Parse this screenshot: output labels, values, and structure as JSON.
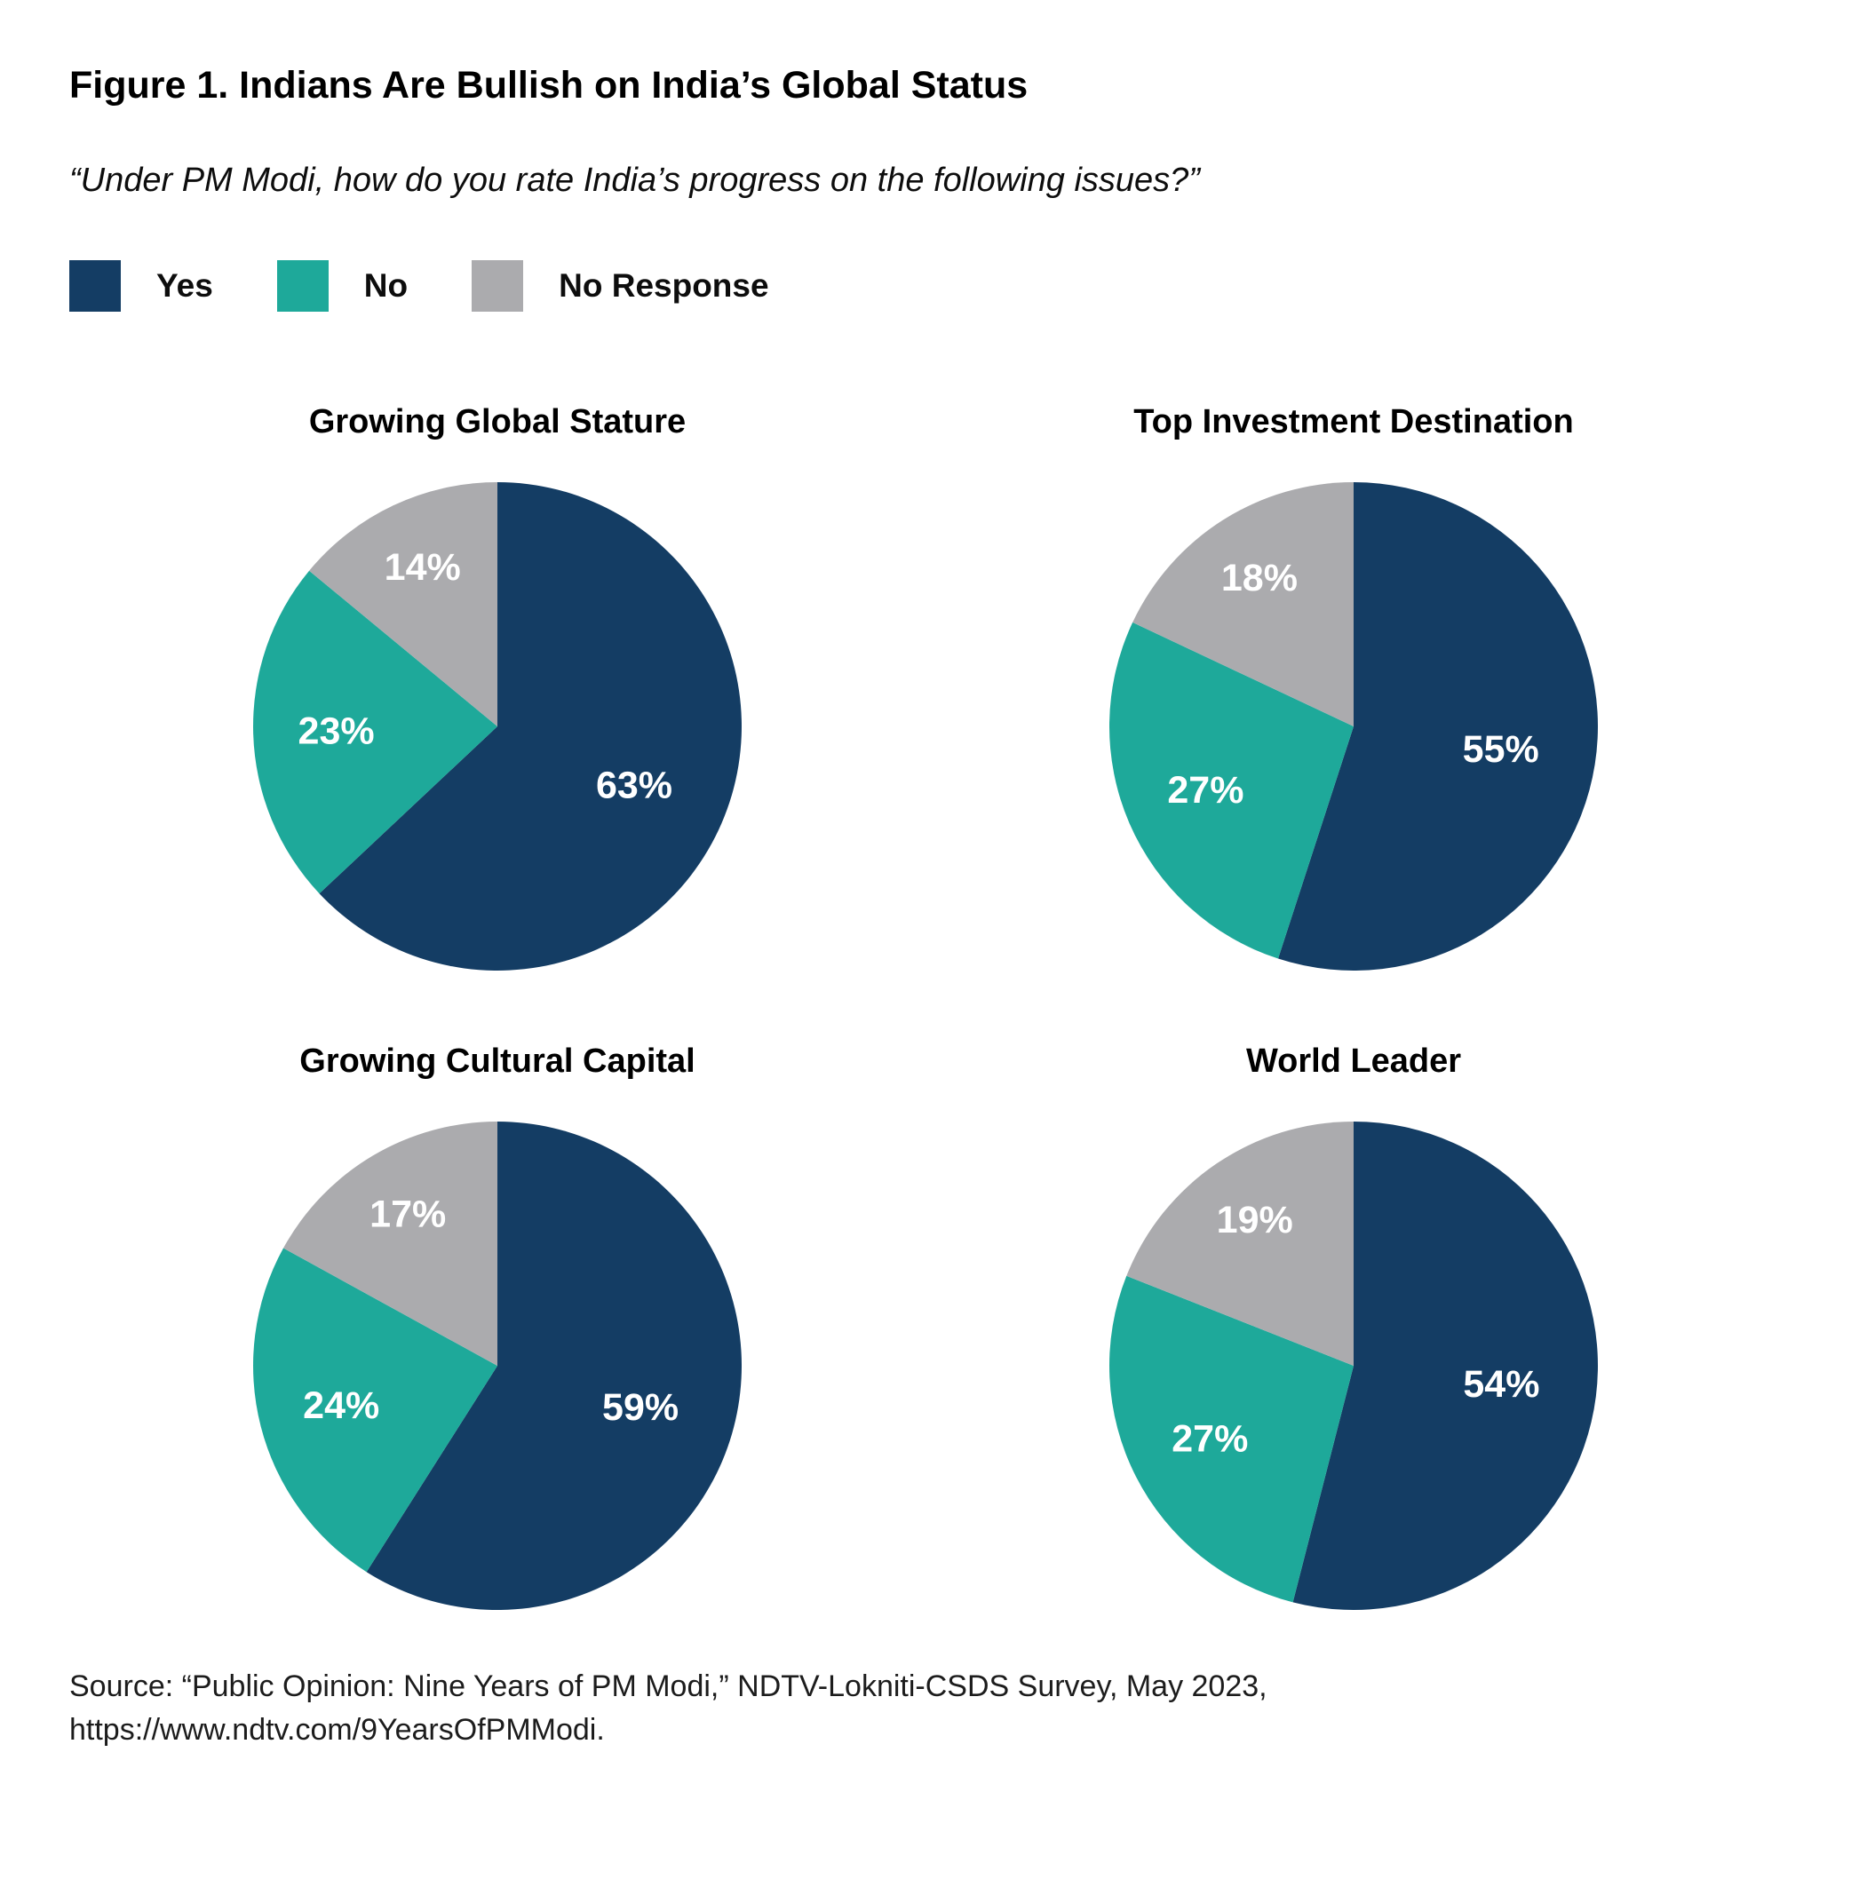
{
  "figure": {
    "title": "Figure 1. Indians Are Bullish on India’s Global Status",
    "subtitle": "“Under PM Modi, how do you rate India’s progress on the following issues?”",
    "source_line1": "Source: “Public Opinion: Nine Years of PM Modi,” NDTV-Lokniti-CSDS Survey, May 2023,",
    "source_line2": "https://www.ndtv.com/9YearsOfPMModi."
  },
  "legend": {
    "items": [
      {
        "label": "Yes",
        "color": "#143D64"
      },
      {
        "label": "No",
        "color": "#1EA99A"
      },
      {
        "label": "No Response",
        "color": "#ABABAE"
      }
    ]
  },
  "chart_data": {
    "type": "pie",
    "series_labels": [
      "Yes",
      "No",
      "No Response"
    ],
    "colors": [
      "#143D64",
      "#1EA99A",
      "#ABABAE"
    ],
    "start_angle_deg": 0,
    "direction": "clockwise",
    "value_label_color": "#FFFFFF",
    "legend_position": "top-left",
    "charts": [
      {
        "title": "Growing Global Stature",
        "values": [
          63,
          23,
          14
        ],
        "labels": [
          "63%",
          "23%",
          "14%"
        ]
      },
      {
        "title": "Top Investment Destination",
        "values": [
          55,
          27,
          18
        ],
        "labels": [
          "55%",
          "27%",
          "18%"
        ]
      },
      {
        "title": "Growing Cultural Capital",
        "values": [
          59,
          24,
          17
        ],
        "labels": [
          "59%",
          "24%",
          "17%"
        ]
      },
      {
        "title": "World Leader",
        "values": [
          54,
          27,
          19
        ],
        "labels": [
          "54%",
          "27%",
          "19%"
        ]
      }
    ]
  }
}
